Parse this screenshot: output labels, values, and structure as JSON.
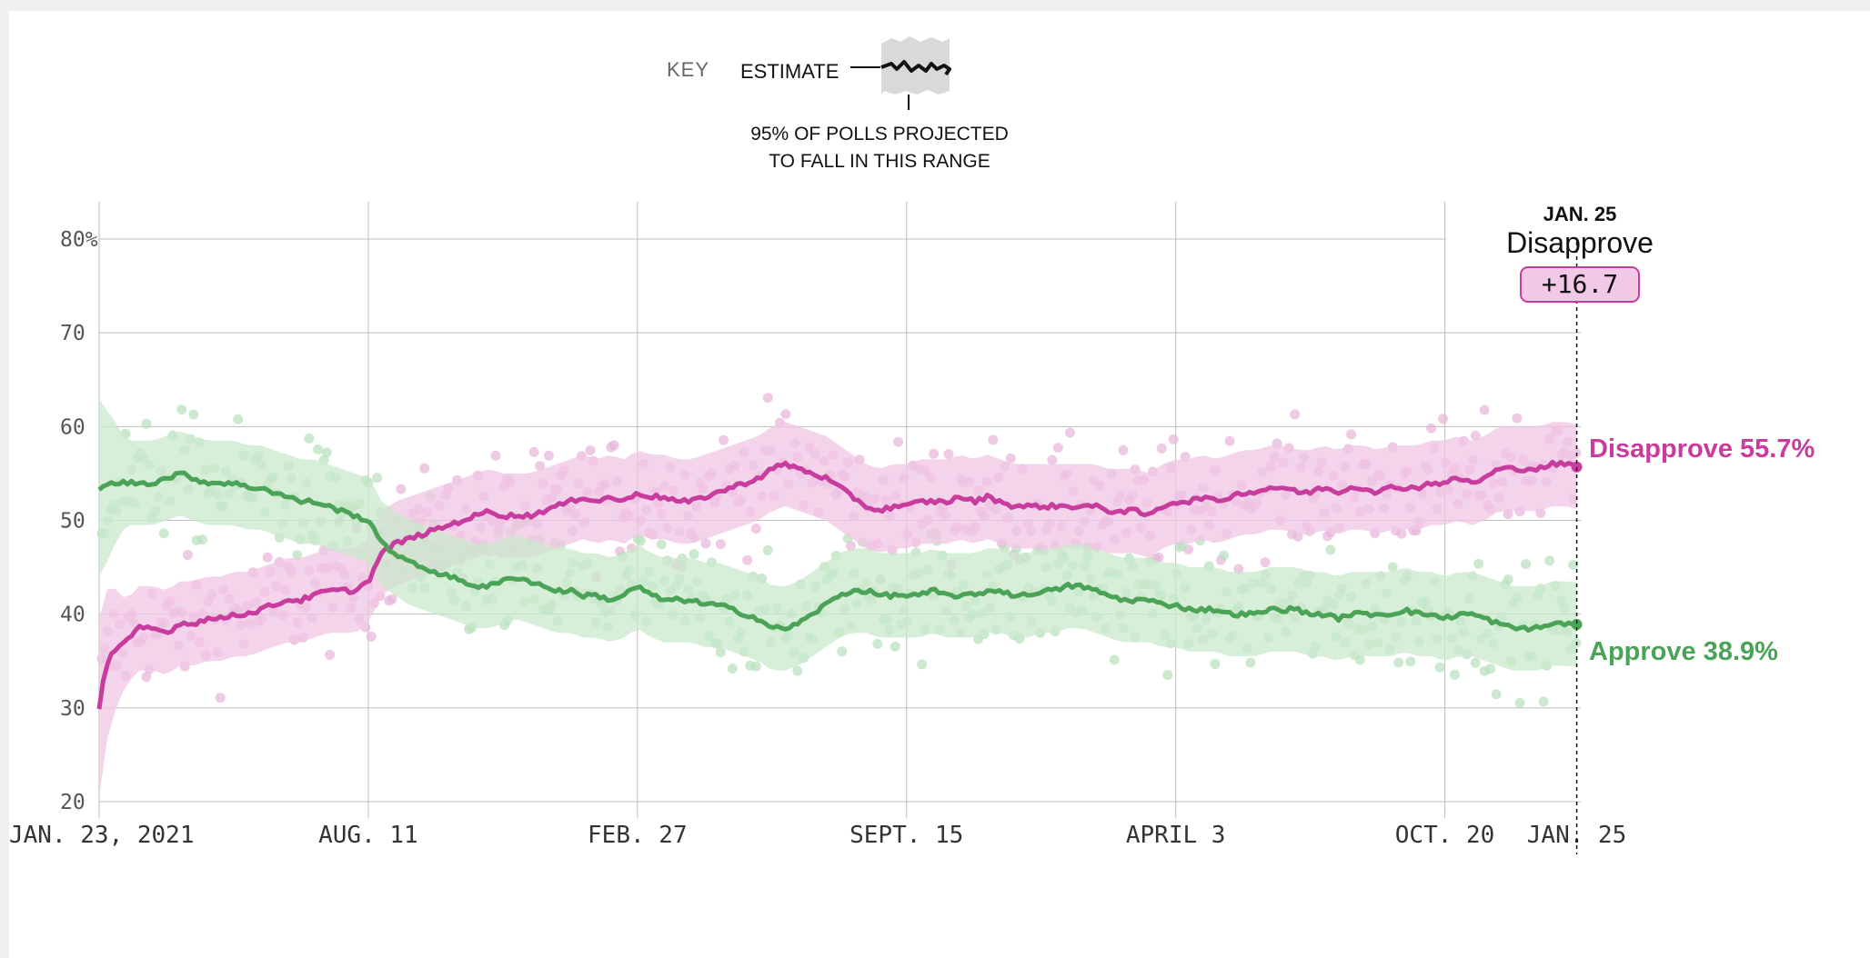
{
  "key": {
    "label": "KEY",
    "estimate_label": "ESTIMATE",
    "range_line1": "95% OF POLLS PROJECTED",
    "range_line2": "TO FALL IN THIS RANGE"
  },
  "tooltip": {
    "date": "JAN. 25",
    "leader": "Disapprove",
    "margin": "+16.7"
  },
  "end_labels": {
    "disapprove": "Disapprove 55.7%",
    "approve": "Approve 38.9%"
  },
  "colors": {
    "disapprove": "#c83c9e",
    "approve": "#4aa356",
    "disapprove_band": "#f0c6e4",
    "approve_band": "#c9e8cc",
    "grid": "#bdbdbd"
  },
  "chart_data": {
    "type": "line",
    "title": "",
    "xlabel": "",
    "ylabel": "",
    "ylim": [
      20,
      80
    ],
    "yticks": [
      20,
      30,
      40,
      50,
      60,
      70,
      80
    ],
    "ytick_labels": [
      "20",
      "30",
      "40",
      "50",
      "60",
      "70",
      "80%"
    ],
    "xlim_days": [
      0,
      1101
    ],
    "xticks": [
      {
        "day": 0,
        "label": "JAN. 23, 2021"
      },
      {
        "day": 200,
        "label": "AUG. 11"
      },
      {
        "day": 400,
        "label": "FEB. 27"
      },
      {
        "day": 600,
        "label": "SEPT. 15"
      },
      {
        "day": 800,
        "label": "APRIL 3"
      },
      {
        "day": 1000,
        "label": "OCT. 20"
      },
      {
        "day": 1098,
        "label": "JAN. 25"
      }
    ],
    "highlight_day": 1098,
    "band_halfwidth_pct": 4.5,
    "series": [
      {
        "name": "Disapprove",
        "final_value": 55.7,
        "x": [
          0,
          4,
          10,
          20,
          30,
          40,
          50,
          60,
          70,
          80,
          90,
          100,
          110,
          120,
          130,
          140,
          150,
          160,
          170,
          180,
          190,
          200,
          205,
          210,
          220,
          230,
          240,
          250,
          260,
          270,
          280,
          290,
          300,
          310,
          320,
          330,
          340,
          350,
          360,
          370,
          380,
          390,
          400,
          410,
          420,
          430,
          440,
          450,
          460,
          470,
          480,
          490,
          500,
          510,
          520,
          530,
          540,
          550,
          560,
          570,
          580,
          590,
          600,
          610,
          620,
          630,
          640,
          650,
          660,
          670,
          680,
          690,
          700,
          710,
          720,
          730,
          740,
          750,
          760,
          770,
          780,
          790,
          800,
          810,
          820,
          830,
          840,
          850,
          860,
          870,
          880,
          890,
          900,
          910,
          920,
          930,
          940,
          950,
          960,
          970,
          980,
          990,
          1000,
          1010,
          1020,
          1030,
          1040,
          1050,
          1060,
          1070,
          1080,
          1090,
          1098
        ],
        "values": [
          30,
          34,
          36,
          37,
          38.5,
          38.5,
          38,
          39,
          39,
          39.5,
          39.5,
          40,
          40,
          40.5,
          41,
          41.5,
          41.5,
          42,
          42.5,
          42.5,
          42.5,
          43.5,
          45,
          46.5,
          47.5,
          48,
          48.5,
          49,
          49.5,
          50,
          50.5,
          51,
          50.5,
          50.5,
          50.5,
          51,
          51.5,
          52,
          52.5,
          52,
          52.5,
          52,
          53,
          52.5,
          52.5,
          52,
          52,
          52.5,
          53,
          53.5,
          54,
          54.5,
          55.5,
          56,
          55.5,
          55,
          54.5,
          53.5,
          52.5,
          51.5,
          51,
          51.5,
          51.5,
          52,
          52,
          52,
          52.5,
          52,
          52.5,
          52,
          51.5,
          51.5,
          51.5,
          51.5,
          51.5,
          51.5,
          51.5,
          51,
          51,
          51,
          50.5,
          51.5,
          52,
          52,
          52.5,
          52,
          52.5,
          53,
          53,
          53.5,
          53.5,
          53,
          53,
          53.5,
          53,
          53.5,
          53.5,
          53,
          53.5,
          53.5,
          53.5,
          54,
          54,
          54.5,
          54,
          54.5,
          55.5,
          55.5,
          55.5,
          55.5,
          56,
          56,
          55.7
        ]
      },
      {
        "name": "Approve",
        "final_value": 38.9,
        "x": [
          0,
          4,
          10,
          20,
          30,
          40,
          50,
          60,
          70,
          80,
          90,
          100,
          110,
          120,
          130,
          140,
          150,
          160,
          170,
          180,
          190,
          200,
          205,
          210,
          220,
          230,
          240,
          250,
          260,
          270,
          280,
          290,
          300,
          310,
          320,
          330,
          340,
          350,
          360,
          370,
          380,
          390,
          400,
          410,
          420,
          430,
          440,
          450,
          460,
          470,
          480,
          490,
          500,
          510,
          520,
          530,
          540,
          550,
          560,
          570,
          580,
          590,
          600,
          610,
          620,
          630,
          640,
          650,
          660,
          670,
          680,
          690,
          700,
          710,
          720,
          730,
          740,
          750,
          760,
          770,
          780,
          790,
          800,
          810,
          820,
          830,
          840,
          850,
          860,
          870,
          880,
          890,
          900,
          910,
          920,
          930,
          940,
          950,
          960,
          970,
          980,
          990,
          1000,
          1010,
          1020,
          1030,
          1040,
          1050,
          1060,
          1070,
          1080,
          1090,
          1098
        ],
        "values": [
          53.5,
          53.5,
          54,
          54,
          54,
          54,
          54.5,
          55,
          54.5,
          54,
          54,
          54,
          53.5,
          53.5,
          53,
          52.5,
          52,
          52,
          51.5,
          51,
          50.5,
          50,
          49,
          47.5,
          46.5,
          45.5,
          45,
          44.5,
          44,
          43.5,
          43,
          43,
          43.5,
          44,
          43.5,
          43,
          42.5,
          42.5,
          42,
          42,
          41.5,
          42,
          43,
          42,
          41.5,
          41.5,
          41.5,
          41,
          41,
          40.5,
          40,
          39.5,
          38.5,
          38.5,
          39,
          40,
          41,
          42,
          42.5,
          42.5,
          42,
          42,
          42,
          42,
          42.5,
          42,
          42,
          42,
          42.5,
          42.5,
          42,
          42,
          42.5,
          42.5,
          43,
          43,
          42.5,
          42,
          41.5,
          41.5,
          41.5,
          41,
          41,
          40.5,
          40.5,
          40.5,
          40,
          40,
          40,
          40.5,
          40.5,
          40.5,
          40,
          40,
          39.5,
          40,
          40,
          40,
          40,
          40.5,
          40,
          40,
          39.5,
          40,
          40,
          39.5,
          39,
          38.5,
          38.5,
          38.5,
          39,
          39,
          38.9
        ]
      }
    ],
    "annotations": [
      "Disapprove 55.7%",
      "Approve 38.9%"
    ]
  }
}
